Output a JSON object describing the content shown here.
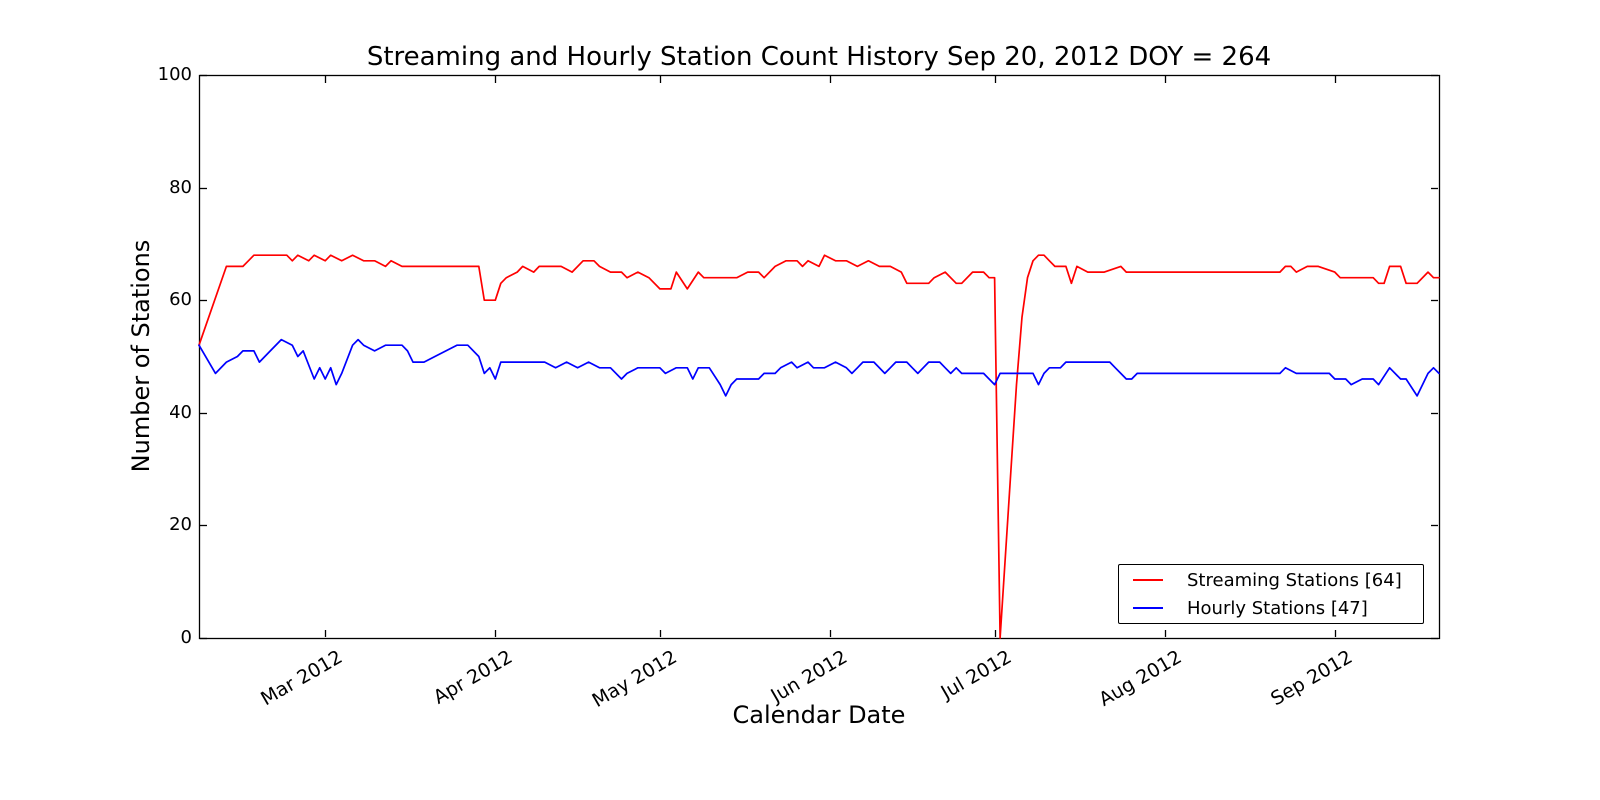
{
  "chart_data": {
    "type": "line",
    "title": "Streaming and Hourly Station Count History Sep 20, 2012 DOY = 264",
    "xlabel": "Calendar Date",
    "ylabel": "Number of Stations",
    "x_unit": "day_of_year_2012",
    "xlim_doy": [
      38,
      264
    ],
    "ylim": [
      0,
      100
    ],
    "grid": false,
    "legend_position": "lower right",
    "frame_color": "#000000",
    "y_ticks": [
      0,
      20,
      40,
      60,
      80,
      100
    ],
    "x_ticks": [
      {
        "label": "Mar 2012",
        "doy": 61
      },
      {
        "label": "Apr 2012",
        "doy": 92
      },
      {
        "label": "May 2012",
        "doy": 122
      },
      {
        "label": "Jun 2012",
        "doy": 153
      },
      {
        "label": "Jul 2012",
        "doy": 183
      },
      {
        "label": "Aug 2012",
        "doy": 214
      },
      {
        "label": "Sep 2012",
        "doy": 245
      }
    ],
    "series": [
      {
        "name": "Streaming Stations [64]",
        "final_count": 64,
        "color": "#ff0000",
        "points": [
          [
            38,
            52
          ],
          [
            43,
            66
          ],
          [
            46,
            66
          ],
          [
            47,
            67
          ],
          [
            48,
            68
          ],
          [
            50,
            68
          ],
          [
            52,
            68
          ],
          [
            54,
            68
          ],
          [
            55,
            67
          ],
          [
            56,
            68
          ],
          [
            58,
            67
          ],
          [
            59,
            68
          ],
          [
            61,
            67
          ],
          [
            62,
            68
          ],
          [
            64,
            67
          ],
          [
            66,
            68
          ],
          [
            68,
            67
          ],
          [
            70,
            67
          ],
          [
            72,
            66
          ],
          [
            73,
            67
          ],
          [
            75,
            66
          ],
          [
            78,
            66
          ],
          [
            81,
            66
          ],
          [
            84,
            66
          ],
          [
            87,
            66
          ],
          [
            89,
            66
          ],
          [
            90,
            60
          ],
          [
            92,
            60
          ],
          [
            93,
            63
          ],
          [
            94,
            64
          ],
          [
            96,
            65
          ],
          [
            97,
            66
          ],
          [
            99,
            65
          ],
          [
            100,
            66
          ],
          [
            102,
            66
          ],
          [
            104,
            66
          ],
          [
            106,
            65
          ],
          [
            108,
            67
          ],
          [
            110,
            67
          ],
          [
            111,
            66
          ],
          [
            113,
            65
          ],
          [
            115,
            65
          ],
          [
            116,
            64
          ],
          [
            118,
            65
          ],
          [
            120,
            64
          ],
          [
            122,
            62
          ],
          [
            124,
            62
          ],
          [
            125,
            65
          ],
          [
            127,
            62
          ],
          [
            129,
            65
          ],
          [
            130,
            64
          ],
          [
            132,
            64
          ],
          [
            134,
            64
          ],
          [
            136,
            64
          ],
          [
            138,
            65
          ],
          [
            140,
            65
          ],
          [
            141,
            64
          ],
          [
            143,
            66
          ],
          [
            145,
            67
          ],
          [
            147,
            67
          ],
          [
            148,
            66
          ],
          [
            149,
            67
          ],
          [
            151,
            66
          ],
          [
            152,
            68
          ],
          [
            154,
            67
          ],
          [
            156,
            67
          ],
          [
            158,
            66
          ],
          [
            160,
            67
          ],
          [
            162,
            66
          ],
          [
            164,
            66
          ],
          [
            166,
            65
          ],
          [
            167,
            63
          ],
          [
            169,
            63
          ],
          [
            171,
            63
          ],
          [
            172,
            64
          ],
          [
            174,
            65
          ],
          [
            176,
            63
          ],
          [
            177,
            63
          ],
          [
            179,
            65
          ],
          [
            181,
            65
          ],
          [
            182,
            64
          ],
          [
            183,
            64
          ],
          [
            184,
            0
          ],
          [
            186,
            30
          ],
          [
            187,
            45
          ],
          [
            188,
            57
          ],
          [
            189,
            64
          ],
          [
            190,
            67
          ],
          [
            191,
            68
          ],
          [
            192,
            68
          ],
          [
            193,
            67
          ],
          [
            194,
            66
          ],
          [
            196,
            66
          ],
          [
            197,
            63
          ],
          [
            198,
            66
          ],
          [
            200,
            65
          ],
          [
            203,
            65
          ],
          [
            206,
            66
          ],
          [
            207,
            65
          ],
          [
            211,
            65
          ],
          [
            216,
            65
          ],
          [
            221,
            65
          ],
          [
            226,
            65
          ],
          [
            231,
            65
          ],
          [
            235,
            65
          ],
          [
            236,
            66
          ],
          [
            237,
            66
          ],
          [
            238,
            65
          ],
          [
            240,
            66
          ],
          [
            242,
            66
          ],
          [
            245,
            65
          ],
          [
            246,
            64
          ],
          [
            248,
            64
          ],
          [
            250,
            64
          ],
          [
            252,
            64
          ],
          [
            253,
            63
          ],
          [
            254,
            63
          ],
          [
            255,
            66
          ],
          [
            257,
            66
          ],
          [
            258,
            63
          ],
          [
            260,
            63
          ],
          [
            262,
            65
          ],
          [
            263,
            64
          ],
          [
            264,
            64
          ]
        ]
      },
      {
        "name": "Hourly Stations [47]",
        "final_count": 47,
        "color": "#0000ff",
        "points": [
          [
            38,
            52
          ],
          [
            41,
            47
          ],
          [
            43,
            49
          ],
          [
            45,
            50
          ],
          [
            46,
            51
          ],
          [
            48,
            51
          ],
          [
            49,
            49
          ],
          [
            51,
            51
          ],
          [
            53,
            53
          ],
          [
            55,
            52
          ],
          [
            56,
            50
          ],
          [
            57,
            51
          ],
          [
            59,
            46
          ],
          [
            60,
            48
          ],
          [
            61,
            46
          ],
          [
            62,
            48
          ],
          [
            63,
            45
          ],
          [
            64,
            47
          ],
          [
            66,
            52
          ],
          [
            67,
            53
          ],
          [
            68,
            52
          ],
          [
            70,
            51
          ],
          [
            72,
            52
          ],
          [
            74,
            52
          ],
          [
            75,
            52
          ],
          [
            76,
            51
          ],
          [
            77,
            49
          ],
          [
            79,
            49
          ],
          [
            81,
            50
          ],
          [
            83,
            51
          ],
          [
            85,
            52
          ],
          [
            87,
            52
          ],
          [
            89,
            50
          ],
          [
            90,
            47
          ],
          [
            91,
            48
          ],
          [
            92,
            46
          ],
          [
            93,
            49
          ],
          [
            95,
            49
          ],
          [
            97,
            49
          ],
          [
            99,
            49
          ],
          [
            101,
            49
          ],
          [
            103,
            48
          ],
          [
            105,
            49
          ],
          [
            107,
            48
          ],
          [
            109,
            49
          ],
          [
            111,
            48
          ],
          [
            113,
            48
          ],
          [
            115,
            46
          ],
          [
            116,
            47
          ],
          [
            118,
            48
          ],
          [
            120,
            48
          ],
          [
            122,
            48
          ],
          [
            123,
            47
          ],
          [
            125,
            48
          ],
          [
            127,
            48
          ],
          [
            128,
            46
          ],
          [
            129,
            48
          ],
          [
            131,
            48
          ],
          [
            133,
            45
          ],
          [
            134,
            43
          ],
          [
            135,
            45
          ],
          [
            136,
            46
          ],
          [
            138,
            46
          ],
          [
            140,
            46
          ],
          [
            141,
            47
          ],
          [
            143,
            47
          ],
          [
            144,
            48
          ],
          [
            146,
            49
          ],
          [
            147,
            48
          ],
          [
            149,
            49
          ],
          [
            150,
            48
          ],
          [
            152,
            48
          ],
          [
            154,
            49
          ],
          [
            156,
            48
          ],
          [
            157,
            47
          ],
          [
            158,
            48
          ],
          [
            159,
            49
          ],
          [
            161,
            49
          ],
          [
            163,
            47
          ],
          [
            164,
            48
          ],
          [
            165,
            49
          ],
          [
            167,
            49
          ],
          [
            168,
            48
          ],
          [
            169,
            47
          ],
          [
            170,
            48
          ],
          [
            171,
            49
          ],
          [
            173,
            49
          ],
          [
            174,
            48
          ],
          [
            175,
            47
          ],
          [
            176,
            48
          ],
          [
            177,
            47
          ],
          [
            179,
            47
          ],
          [
            181,
            47
          ],
          [
            183,
            45
          ],
          [
            184,
            47
          ],
          [
            186,
            47
          ],
          [
            188,
            47
          ],
          [
            190,
            47
          ],
          [
            191,
            45
          ],
          [
            192,
            47
          ],
          [
            193,
            48
          ],
          [
            195,
            48
          ],
          [
            196,
            49
          ],
          [
            198,
            49
          ],
          [
            200,
            49
          ],
          [
            202,
            49
          ],
          [
            204,
            49
          ],
          [
            205,
            48
          ],
          [
            206,
            47
          ],
          [
            207,
            46
          ],
          [
            208,
            46
          ],
          [
            209,
            47
          ],
          [
            212,
            47
          ],
          [
            216,
            47
          ],
          [
            220,
            47
          ],
          [
            224,
            47
          ],
          [
            228,
            47
          ],
          [
            232,
            47
          ],
          [
            235,
            47
          ],
          [
            236,
            48
          ],
          [
            238,
            47
          ],
          [
            241,
            47
          ],
          [
            244,
            47
          ],
          [
            245,
            46
          ],
          [
            247,
            46
          ],
          [
            248,
            45
          ],
          [
            250,
            46
          ],
          [
            252,
            46
          ],
          [
            253,
            45
          ],
          [
            255,
            48
          ],
          [
            257,
            46
          ],
          [
            258,
            46
          ],
          [
            260,
            43
          ],
          [
            262,
            47
          ],
          [
            263,
            48
          ],
          [
            264,
            47
          ]
        ]
      }
    ]
  }
}
